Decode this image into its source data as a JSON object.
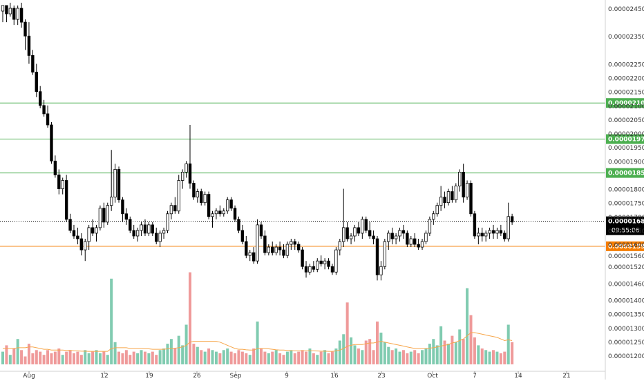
{
  "colors": {
    "background": "#ffffff",
    "candle": "#000000",
    "volume_up": "#80cbb0",
    "volume_down": "#ef9a9a",
    "volume_ma": "#f7a64a",
    "resistance": "#4caf50",
    "support": "#f57c00",
    "axis_text": "#333333"
  },
  "chart_data": {
    "type": "candlestick",
    "price_axis": {
      "ticks": [
        "0.00002450",
        "0.00002350",
        "0.00002250",
        "0.00002200",
        "0.00002150",
        "0.00002100",
        "0.00002050",
        "0.00002000",
        "0.00001950",
        "0.00001900",
        "0.00001800",
        "0.00001750",
        "0.00001700",
        "0.00001650",
        "0.00001600",
        "0.00001560",
        "0.00001520",
        "0.00001460",
        "0.00001400",
        "0.00001350",
        "0.00001300",
        "0.00001250",
        "0.00001200"
      ]
    },
    "time_axis": {
      "ticks": [
        "Aug",
        "12",
        "19",
        "26",
        "Sep",
        "9",
        "16",
        "23",
        "Oct",
        "7",
        "14",
        "21"
      ]
    },
    "horizontal_lines": [
      {
        "label": "0.00002109",
        "price": 2.109e-05,
        "kind": "resistance"
      },
      {
        "label": "0.00001979",
        "price": 1.979e-05,
        "kind": "resistance"
      },
      {
        "label": "0.00001857",
        "price": 1.857e-05,
        "kind": "resistance"
      },
      {
        "label": "0.00001593",
        "price": 1.593e-05,
        "kind": "support"
      }
    ],
    "last_price": {
      "value": "0.00001683",
      "countdown": "09:55:06"
    },
    "candles": [
      [
        2.44,
        2.46,
        2.4,
        2.46
      ],
      [
        2.46,
        2.46,
        2.4,
        2.43
      ],
      [
        2.43,
        2.47,
        2.42,
        2.45
      ],
      [
        2.45,
        2.46,
        2.39,
        2.41
      ],
      [
        2.41,
        2.46,
        2.39,
        2.45
      ],
      [
        2.45,
        2.47,
        2.38,
        2.4
      ],
      [
        2.4,
        2.41,
        2.3,
        2.35
      ],
      [
        2.35,
        2.4,
        2.25,
        2.28
      ],
      [
        2.28,
        2.3,
        2.21,
        2.22
      ],
      [
        2.22,
        2.25,
        2.13,
        2.15
      ],
      [
        2.15,
        2.17,
        2.09,
        2.1
      ],
      [
        2.1,
        2.12,
        2.06,
        2.07
      ],
      [
        2.07,
        2.1,
        2.02,
        2.03
      ],
      [
        2.03,
        2.04,
        1.89,
        1.9
      ],
      [
        1.9,
        1.92,
        1.84,
        1.85
      ],
      [
        1.85,
        1.87,
        1.78,
        1.8
      ],
      [
        1.8,
        1.84,
        1.78,
        1.83
      ],
      [
        1.83,
        1.85,
        1.68,
        1.69
      ],
      [
        1.69,
        1.71,
        1.64,
        1.65
      ],
      [
        1.65,
        1.67,
        1.62,
        1.63
      ],
      [
        1.63,
        1.66,
        1.6,
        1.62
      ],
      [
        1.62,
        1.64,
        1.56,
        1.58
      ],
      [
        1.58,
        1.62,
        1.54,
        1.61
      ],
      [
        1.61,
        1.67,
        1.58,
        1.66
      ],
      [
        1.66,
        1.69,
        1.63,
        1.64
      ],
      [
        1.64,
        1.67,
        1.61,
        1.66
      ],
      [
        1.66,
        1.74,
        1.65,
        1.73
      ],
      [
        1.73,
        1.75,
        1.66,
        1.68
      ],
      [
        1.68,
        1.75,
        1.67,
        1.74
      ],
      [
        1.74,
        1.94,
        1.72,
        1.77
      ],
      [
        1.77,
        1.89,
        1.75,
        1.87
      ],
      [
        1.87,
        1.88,
        1.75,
        1.76
      ],
      [
        1.76,
        1.77,
        1.68,
        1.71
      ],
      [
        1.71,
        1.73,
        1.67,
        1.69
      ],
      [
        1.69,
        1.7,
        1.64,
        1.65
      ],
      [
        1.65,
        1.67,
        1.62,
        1.63
      ],
      [
        1.63,
        1.66,
        1.61,
        1.65
      ],
      [
        1.65,
        1.68,
        1.63,
        1.67
      ],
      [
        1.67,
        1.69,
        1.63,
        1.64
      ],
      [
        1.64,
        1.68,
        1.63,
        1.67
      ],
      [
        1.67,
        1.68,
        1.63,
        1.64
      ],
      [
        1.64,
        1.66,
        1.6,
        1.61
      ],
      [
        1.61,
        1.65,
        1.59,
        1.64
      ],
      [
        1.64,
        1.66,
        1.62,
        1.65
      ],
      [
        1.65,
        1.72,
        1.64,
        1.71
      ],
      [
        1.71,
        1.75,
        1.69,
        1.74
      ],
      [
        1.74,
        1.77,
        1.71,
        1.72
      ],
      [
        1.72,
        1.85,
        1.71,
        1.83
      ],
      [
        1.83,
        1.87,
        1.8,
        1.86
      ],
      [
        1.86,
        1.9,
        1.84,
        1.89
      ],
      [
        1.89,
        2.03,
        1.8,
        1.82
      ],
      [
        1.82,
        1.83,
        1.76,
        1.77
      ],
      [
        1.77,
        1.8,
        1.75,
        1.79
      ],
      [
        1.79,
        1.8,
        1.74,
        1.75
      ],
      [
        1.75,
        1.79,
        1.74,
        1.78
      ],
      [
        1.78,
        1.79,
        1.69,
        1.7
      ],
      [
        1.7,
        1.72,
        1.66,
        1.71
      ],
      [
        1.71,
        1.73,
        1.69,
        1.72
      ],
      [
        1.72,
        1.74,
        1.7,
        1.71
      ],
      [
        1.71,
        1.73,
        1.7,
        1.72
      ],
      [
        1.72,
        1.77,
        1.71,
        1.76
      ],
      [
        1.76,
        1.77,
        1.72,
        1.73
      ],
      [
        1.73,
        1.74,
        1.68,
        1.69
      ],
      [
        1.69,
        1.7,
        1.64,
        1.65
      ],
      [
        1.65,
        1.67,
        1.6,
        1.61
      ],
      [
        1.61,
        1.63,
        1.55,
        1.56
      ],
      [
        1.56,
        1.58,
        1.54,
        1.57
      ],
      [
        1.57,
        1.59,
        1.53,
        1.54
      ],
      [
        1.54,
        1.69,
        1.53,
        1.67
      ],
      [
        1.67,
        1.68,
        1.62,
        1.63
      ],
      [
        1.63,
        1.65,
        1.56,
        1.57
      ],
      [
        1.57,
        1.6,
        1.56,
        1.59
      ],
      [
        1.59,
        1.61,
        1.56,
        1.57
      ],
      [
        1.57,
        1.6,
        1.56,
        1.59
      ],
      [
        1.59,
        1.61,
        1.56,
        1.58
      ],
      [
        1.58,
        1.6,
        1.55,
        1.56
      ],
      [
        1.56,
        1.61,
        1.55,
        1.6
      ],
      [
        1.6,
        1.62,
        1.58,
        1.61
      ],
      [
        1.61,
        1.62,
        1.58,
        1.6
      ],
      [
        1.6,
        1.61,
        1.57,
        1.58
      ],
      [
        1.58,
        1.59,
        1.51,
        1.52
      ],
      [
        1.52,
        1.54,
        1.48,
        1.5
      ],
      [
        1.5,
        1.53,
        1.49,
        1.52
      ],
      [
        1.52,
        1.54,
        1.5,
        1.51
      ],
      [
        1.51,
        1.55,
        1.5,
        1.54
      ],
      [
        1.54,
        1.56,
        1.52,
        1.53
      ],
      [
        1.53,
        1.55,
        1.51,
        1.54
      ],
      [
        1.54,
        1.55,
        1.51,
        1.52
      ],
      [
        1.52,
        1.53,
        1.49,
        1.5
      ],
      [
        1.5,
        1.59,
        1.49,
        1.58
      ],
      [
        1.58,
        1.62,
        1.56,
        1.61
      ],
      [
        1.61,
        1.8,
        1.59,
        1.66
      ],
      [
        1.66,
        1.68,
        1.61,
        1.62
      ],
      [
        1.62,
        1.64,
        1.6,
        1.63
      ],
      [
        1.63,
        1.67,
        1.61,
        1.66
      ],
      [
        1.66,
        1.68,
        1.63,
        1.64
      ],
      [
        1.64,
        1.7,
        1.62,
        1.69
      ],
      [
        1.69,
        1.7,
        1.64,
        1.65
      ],
      [
        1.65,
        1.68,
        1.62,
        1.63
      ],
      [
        1.63,
        1.65,
        1.6,
        1.62
      ],
      [
        1.62,
        1.63,
        1.47,
        1.49
      ],
      [
        1.49,
        1.54,
        1.47,
        1.52
      ],
      [
        1.52,
        1.62,
        1.51,
        1.61
      ],
      [
        1.61,
        1.65,
        1.58,
        1.64
      ],
      [
        1.64,
        1.66,
        1.6,
        1.62
      ],
      [
        1.62,
        1.64,
        1.6,
        1.63
      ],
      [
        1.63,
        1.66,
        1.61,
        1.65
      ],
      [
        1.65,
        1.67,
        1.62,
        1.64
      ],
      [
        1.64,
        1.65,
        1.59,
        1.6
      ],
      [
        1.6,
        1.63,
        1.59,
        1.62
      ],
      [
        1.62,
        1.64,
        1.59,
        1.6
      ],
      [
        1.6,
        1.62,
        1.58,
        1.59
      ],
      [
        1.59,
        1.62,
        1.58,
        1.61
      ],
      [
        1.61,
        1.65,
        1.6,
        1.64
      ],
      [
        1.64,
        1.7,
        1.63,
        1.69
      ],
      [
        1.69,
        1.72,
        1.67,
        1.71
      ],
      [
        1.71,
        1.75,
        1.7,
        1.74
      ],
      [
        1.74,
        1.81,
        1.72,
        1.77
      ],
      [
        1.77,
        1.79,
        1.73,
        1.75
      ],
      [
        1.75,
        1.8,
        1.74,
        1.79
      ],
      [
        1.79,
        1.81,
        1.75,
        1.76
      ],
      [
        1.76,
        1.82,
        1.75,
        1.81
      ],
      [
        1.81,
        1.87,
        1.79,
        1.86
      ],
      [
        1.86,
        1.89,
        1.75,
        1.77
      ],
      [
        1.77,
        1.83,
        1.76,
        1.82
      ],
      [
        1.82,
        1.83,
        1.7,
        1.71
      ],
      [
        1.71,
        1.72,
        1.62,
        1.63
      ],
      [
        1.63,
        1.66,
        1.6,
        1.64
      ],
      [
        1.64,
        1.66,
        1.61,
        1.63
      ],
      [
        1.63,
        1.65,
        1.61,
        1.64
      ],
      [
        1.64,
        1.66,
        1.62,
        1.65
      ],
      [
        1.65,
        1.67,
        1.62,
        1.64
      ],
      [
        1.64,
        1.66,
        1.62,
        1.65
      ],
      [
        1.65,
        1.67,
        1.63,
        1.64
      ],
      [
        1.64,
        1.65,
        1.61,
        1.62
      ],
      [
        1.62,
        1.75,
        1.61,
        1.7
      ],
      [
        1.7,
        1.71,
        1.67,
        1.68
      ]
    ],
    "volumes": [
      0.8,
      1.2,
      0.6,
      1.0,
      1.6,
      0.9,
      0.5,
      1.3,
      0.7,
      0.9,
      0.8,
      0.6,
      0.9,
      0.7,
      0.8,
      1.0,
      0.6,
      0.8,
      0.9,
      0.7,
      0.8,
      0.6,
      0.9,
      0.7,
      0.8,
      0.9,
      0.7,
      0.8,
      0.6,
      5.4,
      1.4,
      0.8,
      0.7,
      0.9,
      0.6,
      0.8,
      0.7,
      0.9,
      0.8,
      0.7,
      0.8,
      0.6,
      0.9,
      1.0,
      1.3,
      1.6,
      1.0,
      1.8,
      1.2,
      2.5,
      5.8,
      1.3,
      1.1,
      0.9,
      0.8,
      1.0,
      0.9,
      0.8,
      0.7,
      0.9,
      1.0,
      0.8,
      0.7,
      0.9,
      0.8,
      0.7,
      0.6,
      1.0,
      2.7,
      1.0,
      0.8,
      0.7,
      0.8,
      0.9,
      0.7,
      0.6,
      0.8,
      0.9,
      0.7,
      0.8,
      0.9,
      0.8,
      1.0,
      0.7,
      0.6,
      0.8,
      0.9,
      0.7,
      0.8,
      1.0,
      1.5,
      1.9,
      3.9,
      1.7,
      1.2,
      1.0,
      0.9,
      1.5,
      1.6,
      0.9,
      2.7,
      2.0,
      1.4,
      1.1,
      0.9,
      1.0,
      0.8,
      0.9,
      0.7,
      0.8,
      0.9,
      0.7,
      0.9,
      1.0,
      1.3,
      1.6,
      1.2,
      2.4,
      1.5,
      1.3,
      1.8,
      1.4,
      2.2,
      1.6,
      4.8,
      3.1,
      1.7,
      1.2,
      1.0,
      0.9,
      0.8,
      0.9,
      0.8,
      0.7,
      0.8,
      2.5,
      1.4
    ],
    "volume_ma": [
      1.0,
      1.0,
      1.0,
      1.0,
      1.05,
      1.05,
      1.05,
      1.1,
      1.1,
      1.05,
      1.0,
      0.95,
      0.95,
      0.9,
      0.9,
      0.9,
      0.9,
      0.88,
      0.88,
      0.85,
      0.85,
      0.83,
      0.83,
      0.82,
      0.82,
      0.82,
      0.82,
      0.82,
      0.82,
      1.0,
      1.05,
      1.05,
      1.05,
      1.05,
      1.0,
      1.0,
      1.0,
      1.0,
      0.98,
      0.98,
      0.95,
      0.95,
      0.95,
      0.95,
      0.98,
      1.0,
      1.02,
      1.05,
      1.1,
      1.2,
      1.4,
      1.45,
      1.45,
      1.45,
      1.45,
      1.45,
      1.45,
      1.45,
      1.4,
      1.3,
      1.2,
      1.1,
      1.0,
      0.95,
      0.95,
      0.92,
      0.9,
      0.9,
      1.0,
      1.0,
      1.0,
      0.98,
      0.95,
      0.92,
      0.9,
      0.9,
      0.88,
      0.86,
      0.85,
      0.85,
      0.85,
      0.85,
      0.85,
      0.85,
      0.84,
      0.83,
      0.83,
      0.82,
      0.82,
      0.85,
      0.9,
      1.0,
      1.15,
      1.2,
      1.25,
      1.25,
      1.25,
      1.3,
      1.35,
      1.35,
      1.4,
      1.45,
      1.4,
      1.35,
      1.3,
      1.25,
      1.2,
      1.15,
      1.1,
      1.05,
      1.0,
      1.0,
      1.0,
      1.0,
      1.02,
      1.05,
      1.1,
      1.15,
      1.2,
      1.25,
      1.35,
      1.4,
      1.5,
      1.6,
      1.8,
      2.0,
      2.0,
      1.95,
      1.9,
      1.85,
      1.8,
      1.75,
      1.7,
      1.6,
      1.5,
      1.55,
      1.5
    ],
    "xlabel": "",
    "ylabel": ""
  }
}
